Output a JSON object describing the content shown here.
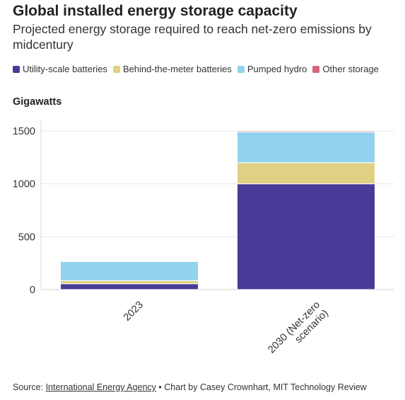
{
  "chart_data": {
    "type": "bar",
    "stacked": true,
    "title": "Global installed energy storage capacity",
    "subtitle": "Projected energy storage required to reach net-zero emissions by midcentury",
    "ylabel": "Gigawatts",
    "categories": [
      "2023",
      "2030 (Net-zero scenario)"
    ],
    "category_lines": [
      [
        "2023"
      ],
      [
        "2030 (Net-zero",
        "scenario)"
      ]
    ],
    "ylim": [
      0,
      1500
    ],
    "yticks": [
      0,
      500,
      1000,
      1500
    ],
    "grid": true,
    "legend_position": "top",
    "series": [
      {
        "name": "Utility-scale batteries",
        "color": "#483a96",
        "values": [
          55,
          1000
        ]
      },
      {
        "name": "Behind-the-meter batteries",
        "color": "#e0d084",
        "values": [
          30,
          200
        ]
      },
      {
        "name": "Pumped hydro",
        "color": "#92d2ef",
        "values": [
          180,
          290
        ]
      },
      {
        "name": "Other storage",
        "color": "#d4677a",
        "values": [
          5,
          10
        ]
      }
    ]
  },
  "source": {
    "prefix": "Source: ",
    "link_text": "International Energy Agency",
    "suffix": " • Chart by Casey Crownhart, MIT Technology Review"
  }
}
